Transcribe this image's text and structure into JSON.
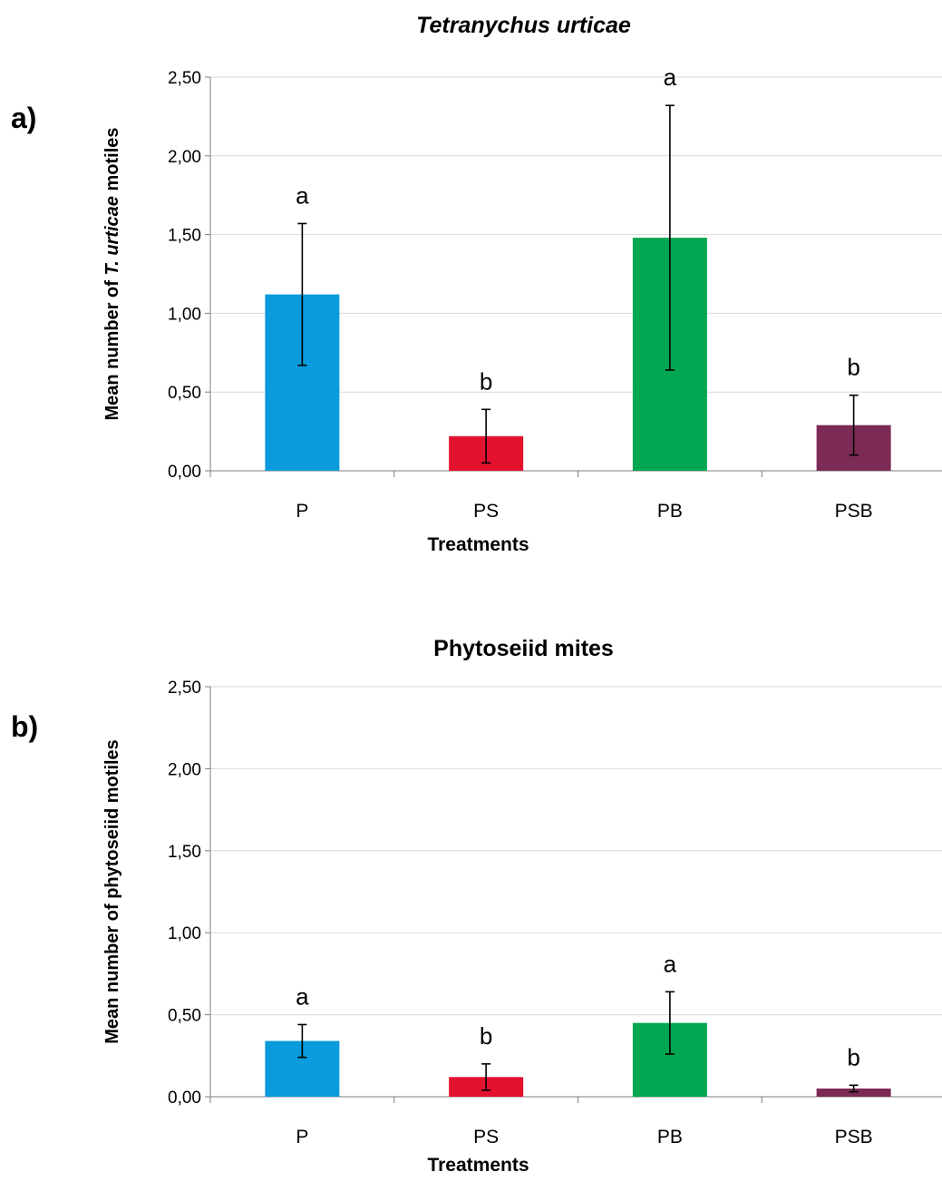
{
  "chart_data": [
    {
      "type": "bar",
      "panel_label": "a)",
      "title_parts": [
        {
          "text": "Tetranychus urticae",
          "italic": true
        }
      ],
      "xlabel": "Treatments",
      "ylabel_parts": [
        {
          "text": "Mean number of ",
          "italic": false
        },
        {
          "text": "T. urticae",
          "italic": true
        },
        {
          "text": " motiles",
          "italic": false
        }
      ],
      "ylim": [
        0,
        2.5
      ],
      "yticks": [
        "0,00",
        "0,50",
        "1,00",
        "1,50",
        "2,00",
        "2,50"
      ],
      "categories": [
        "P",
        "PS",
        "PB",
        "PSB"
      ],
      "values": [
        1.12,
        0.22,
        1.48,
        0.29
      ],
      "errors": [
        0.45,
        0.17,
        0.84,
        0.19
      ],
      "significance": [
        "a",
        "b",
        "a",
        "b"
      ],
      "colors": [
        "#0a9bdc",
        "#e3122f",
        "#00a650",
        "#7b2b55"
      ],
      "grid": true
    },
    {
      "type": "bar",
      "panel_label": "b)",
      "title_parts": [
        {
          "text": "Phytoseiid mites",
          "italic": false
        }
      ],
      "xlabel": "Treatments",
      "ylabel_parts": [
        {
          "text": "Mean number of phytoseiid motiles",
          "italic": false
        }
      ],
      "ylim": [
        0,
        2.5
      ],
      "yticks": [
        "0,00",
        "0,50",
        "1,00",
        "1,50",
        "2,00",
        "2,50"
      ],
      "categories": [
        "P",
        "PS",
        "PB",
        "PSB"
      ],
      "values": [
        0.34,
        0.12,
        0.45,
        0.05
      ],
      "errors": [
        0.1,
        0.08,
        0.19,
        0.02
      ],
      "significance": [
        "a",
        "b",
        "a",
        "b"
      ],
      "colors": [
        "#0a9bdc",
        "#e3122f",
        "#00a650",
        "#7b2b55"
      ],
      "grid": true
    }
  ]
}
